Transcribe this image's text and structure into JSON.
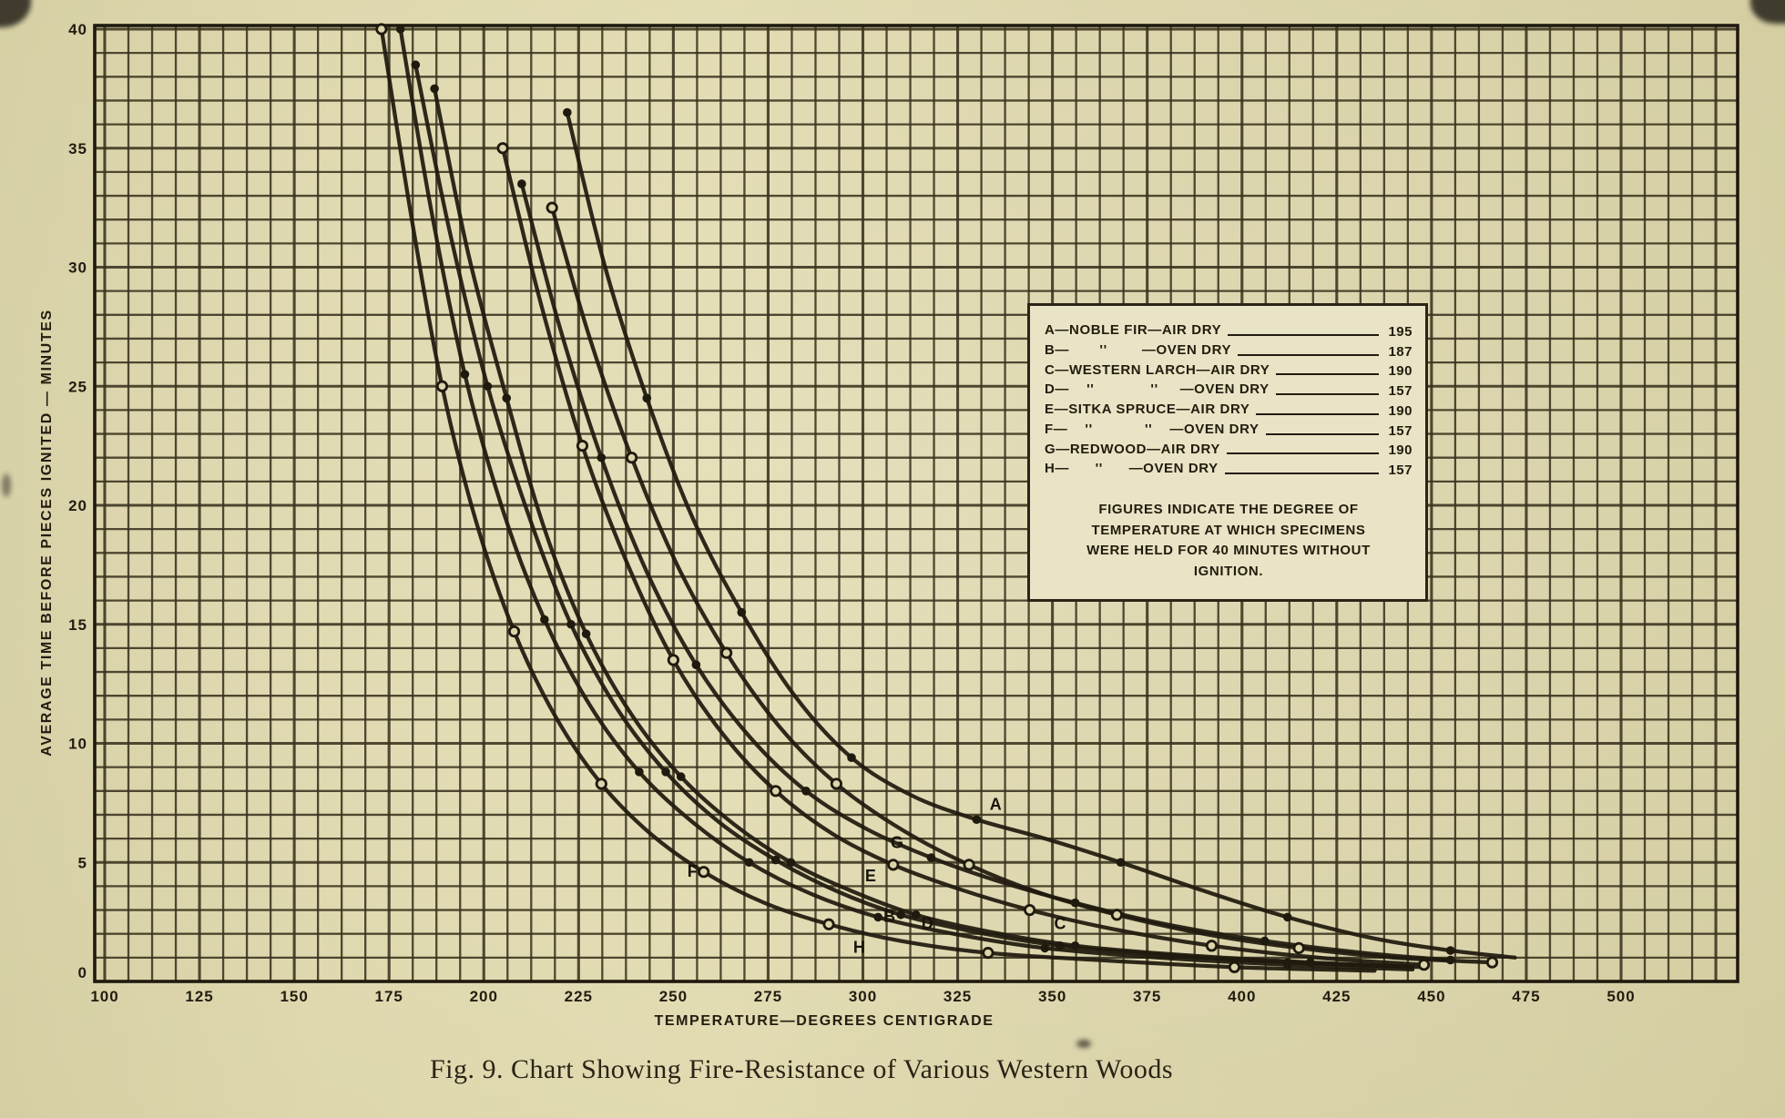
{
  "figure": {
    "caption": "Fig. 9.  Chart Showing Fire-Resistance of Various Western Woods"
  },
  "chart_data": {
    "type": "line",
    "title": "",
    "xlabel": "TEMPERATURE—DEGREES CENTIGRADE",
    "ylabel": "AVERAGE  TIME  BEFORE  PIECES  IGNITED — MINUTES",
    "xlim": [
      100,
      500
    ],
    "ylim": [
      0,
      40
    ],
    "x_ticks": [
      100,
      125,
      150,
      175,
      200,
      225,
      250,
      275,
      300,
      325,
      350,
      375,
      400,
      425,
      450,
      475,
      500
    ],
    "y_ticks": [
      0,
      5,
      10,
      15,
      20,
      25,
      30,
      35,
      40
    ],
    "grid": true,
    "legend_position": "upper right",
    "legend": {
      "rows": [
        {
          "letter": "A",
          "label": "A—NOBLE FIR—AIR DRY",
          "value": "195"
        },
        {
          "letter": "B",
          "label": "B—       ''        —OVEN DRY",
          "value": "187"
        },
        {
          "letter": "C",
          "label": "C—WESTERN LARCH—AIR DRY",
          "value": "190"
        },
        {
          "letter": "D",
          "label": "D—    ''             ''     —OVEN DRY",
          "value": "157"
        },
        {
          "letter": "E",
          "label": "E—SITKA SPRUCE—AIR DRY",
          "value": "190"
        },
        {
          "letter": "F",
          "label": "F—    ''            ''    —OVEN DRY",
          "value": "157"
        },
        {
          "letter": "G",
          "label": "G—REDWOOD—AIR DRY",
          "value": "190"
        },
        {
          "letter": "H",
          "label": "H—      ''      —OVEN DRY",
          "value": "157"
        }
      ],
      "note": "FIGURES INDICATE THE DEGREE OF TEMPERATURE AT WHICH SPECIMENS WERE HELD FOR 40 MINUTES WITHOUT IGNITION."
    },
    "series": [
      {
        "name": "A – Noble fir, air dry",
        "letter": "A",
        "marker": "dot",
        "label_at": [
          335,
          7.2
        ],
        "points": [
          [
            222,
            36.5
          ],
          [
            232,
            30
          ],
          [
            243,
            24.5
          ],
          [
            255,
            19.5
          ],
          [
            268,
            15.5
          ],
          [
            282,
            12
          ],
          [
            297,
            9.4
          ],
          [
            313,
            7.8
          ],
          [
            330,
            6.8
          ],
          [
            348,
            6.0
          ],
          [
            368,
            5.0
          ],
          [
            390,
            3.8
          ],
          [
            412,
            2.7
          ],
          [
            435,
            1.8
          ],
          [
            455,
            1.3
          ],
          [
            472,
            1.0
          ]
        ]
      },
      {
        "name": "B – Noble fir, oven dry",
        "letter": "B",
        "marker": "dot",
        "label_at": [
          307,
          2.5
        ],
        "points": [
          [
            187,
            37.5
          ],
          [
            196,
            30.5
          ],
          [
            206,
            24.5
          ],
          [
            216,
            19
          ],
          [
            227,
            14.6
          ],
          [
            239,
            11.2
          ],
          [
            252,
            8.6
          ],
          [
            266,
            6.6
          ],
          [
            281,
            5.0
          ],
          [
            297,
            3.8
          ],
          [
            314,
            2.8
          ],
          [
            333,
            2.1
          ],
          [
            356,
            1.5
          ],
          [
            385,
            1.1
          ],
          [
            418,
            0.8
          ],
          [
            448,
            0.6
          ]
        ]
      },
      {
        "name": "C – Western larch, air dry",
        "letter": "C",
        "marker": "open",
        "label_at": [
          352,
          2.2
        ],
        "points": [
          [
            218,
            32.5
          ],
          [
            228,
            27
          ],
          [
            239,
            22
          ],
          [
            251,
            17.5
          ],
          [
            264,
            13.8
          ],
          [
            278,
            10.7
          ],
          [
            293,
            8.3
          ],
          [
            310,
            6.4
          ],
          [
            328,
            4.9
          ],
          [
            347,
            3.7
          ],
          [
            367,
            2.8
          ],
          [
            390,
            2.0
          ],
          [
            415,
            1.4
          ],
          [
            440,
            1.0
          ],
          [
            466,
            0.8
          ]
        ]
      },
      {
        "name": "D – Western larch, oven dry",
        "letter": "D",
        "marker": "dot",
        "label_at": [
          317,
          2.2
        ],
        "points": [
          [
            182,
            38.5
          ],
          [
            191,
            31.5
          ],
          [
            201,
            25
          ],
          [
            212,
            19.5
          ],
          [
            223,
            15
          ],
          [
            235,
            11.5
          ],
          [
            248,
            8.8
          ],
          [
            262,
            6.7
          ],
          [
            277,
            5.1
          ],
          [
            293,
            3.8
          ],
          [
            310,
            2.8
          ],
          [
            329,
            2.1
          ],
          [
            352,
            1.5
          ],
          [
            380,
            1.1
          ],
          [
            412,
            0.8
          ],
          [
            445,
            0.6
          ]
        ]
      },
      {
        "name": "E – Sitka spruce, air dry",
        "letter": "E",
        "marker": "open",
        "label_at": [
          302,
          4.2
        ],
        "points": [
          [
            205,
            35
          ],
          [
            215,
            28.5
          ],
          [
            226,
            22.5
          ],
          [
            238,
            17.5
          ],
          [
            250,
            13.5
          ],
          [
            263,
            10.4
          ],
          [
            277,
            8.0
          ],
          [
            292,
            6.2
          ],
          [
            308,
            4.9
          ],
          [
            325,
            3.9
          ],
          [
            344,
            3.0
          ],
          [
            366,
            2.2
          ],
          [
            392,
            1.5
          ],
          [
            420,
            1.0
          ],
          [
            448,
            0.7
          ]
        ]
      },
      {
        "name": "F – Sitka spruce, oven dry",
        "letter": "F",
        "marker": "dot",
        "label_at": [
          255,
          4.4
        ],
        "points": [
          [
            178,
            40
          ],
          [
            186,
            32.5
          ],
          [
            195,
            25.5
          ],
          [
            205,
            19.8
          ],
          [
            216,
            15.2
          ],
          [
            228,
            11.6
          ],
          [
            241,
            8.8
          ],
          [
            255,
            6.7
          ],
          [
            270,
            5.0
          ],
          [
            286,
            3.7
          ],
          [
            304,
            2.7
          ],
          [
            324,
            2.0
          ],
          [
            348,
            1.4
          ],
          [
            378,
            1.0
          ],
          [
            412,
            0.7
          ],
          [
            445,
            0.5
          ]
        ]
      },
      {
        "name": "G – Redwood, air dry",
        "letter": "G",
        "marker": "dot",
        "label_at": [
          309,
          5.6
        ],
        "points": [
          [
            210,
            33.5
          ],
          [
            220,
            27.5
          ],
          [
            231,
            22
          ],
          [
            243,
            17.2
          ],
          [
            256,
            13.3
          ],
          [
            270,
            10.3
          ],
          [
            285,
            8.0
          ],
          [
            301,
            6.4
          ],
          [
            318,
            5.2
          ],
          [
            336,
            4.2
          ],
          [
            356,
            3.3
          ],
          [
            380,
            2.4
          ],
          [
            406,
            1.7
          ],
          [
            432,
            1.2
          ],
          [
            455,
            0.9
          ]
        ]
      },
      {
        "name": "H – Redwood, oven dry",
        "letter": "H",
        "marker": "open",
        "label_at": [
          299,
          1.2
        ],
        "points": [
          [
            173,
            40
          ],
          [
            181,
            32
          ],
          [
            189,
            25
          ],
          [
            198,
            19.3
          ],
          [
            208,
            14.7
          ],
          [
            219,
            11.1
          ],
          [
            231,
            8.3
          ],
          [
            244,
            6.2
          ],
          [
            258,
            4.6
          ],
          [
            274,
            3.3
          ],
          [
            291,
            2.4
          ],
          [
            310,
            1.7
          ],
          [
            333,
            1.2
          ],
          [
            362,
            0.9
          ],
          [
            398,
            0.6
          ],
          [
            435,
            0.45
          ]
        ]
      }
    ]
  },
  "colors": {
    "paper": "#dcd5ab",
    "panel": "#eae4c6",
    "ink": "#1f1a0e",
    "grid": "#3a341f"
  }
}
